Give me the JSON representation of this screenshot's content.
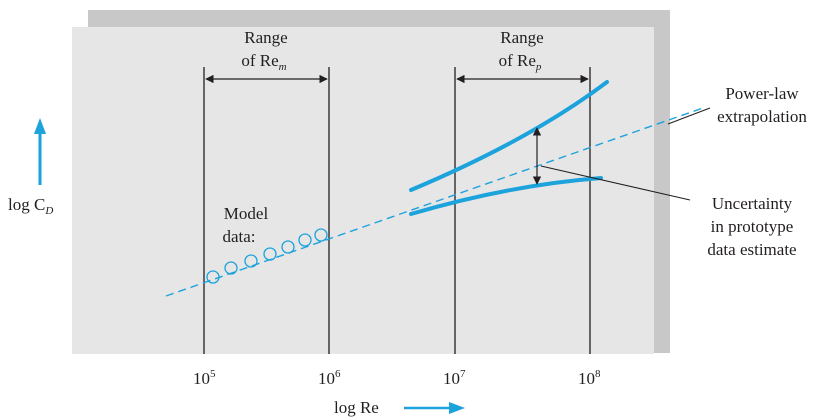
{
  "colors": {
    "accent": "#1ca3dc",
    "panel": "#e6e6e6",
    "panel_shadow": "#c8c8c8",
    "ink": "#231f20"
  },
  "axes": {
    "y_label_main": "log C",
    "y_label_sub": "D",
    "x_label": "log Re",
    "ticks": [
      {
        "base": "10",
        "exp": "5"
      },
      {
        "base": "10",
        "exp": "6"
      },
      {
        "base": "10",
        "exp": "7"
      },
      {
        "base": "10",
        "exp": "8"
      }
    ]
  },
  "range_model": {
    "line1": "Range",
    "line2": "of Re",
    "sub": "m"
  },
  "range_prototype": {
    "line1": "Range",
    "line2": "of Re",
    "sub": "p"
  },
  "model_data": {
    "line1": "Model",
    "line2": "data:",
    "marker_count": 7
  },
  "power_law": {
    "line1": "Power-law",
    "line2": "extrapolation"
  },
  "uncertainty": {
    "line1": "Uncertainty",
    "line2": "in prototype",
    "line3": "data estimate"
  }
}
